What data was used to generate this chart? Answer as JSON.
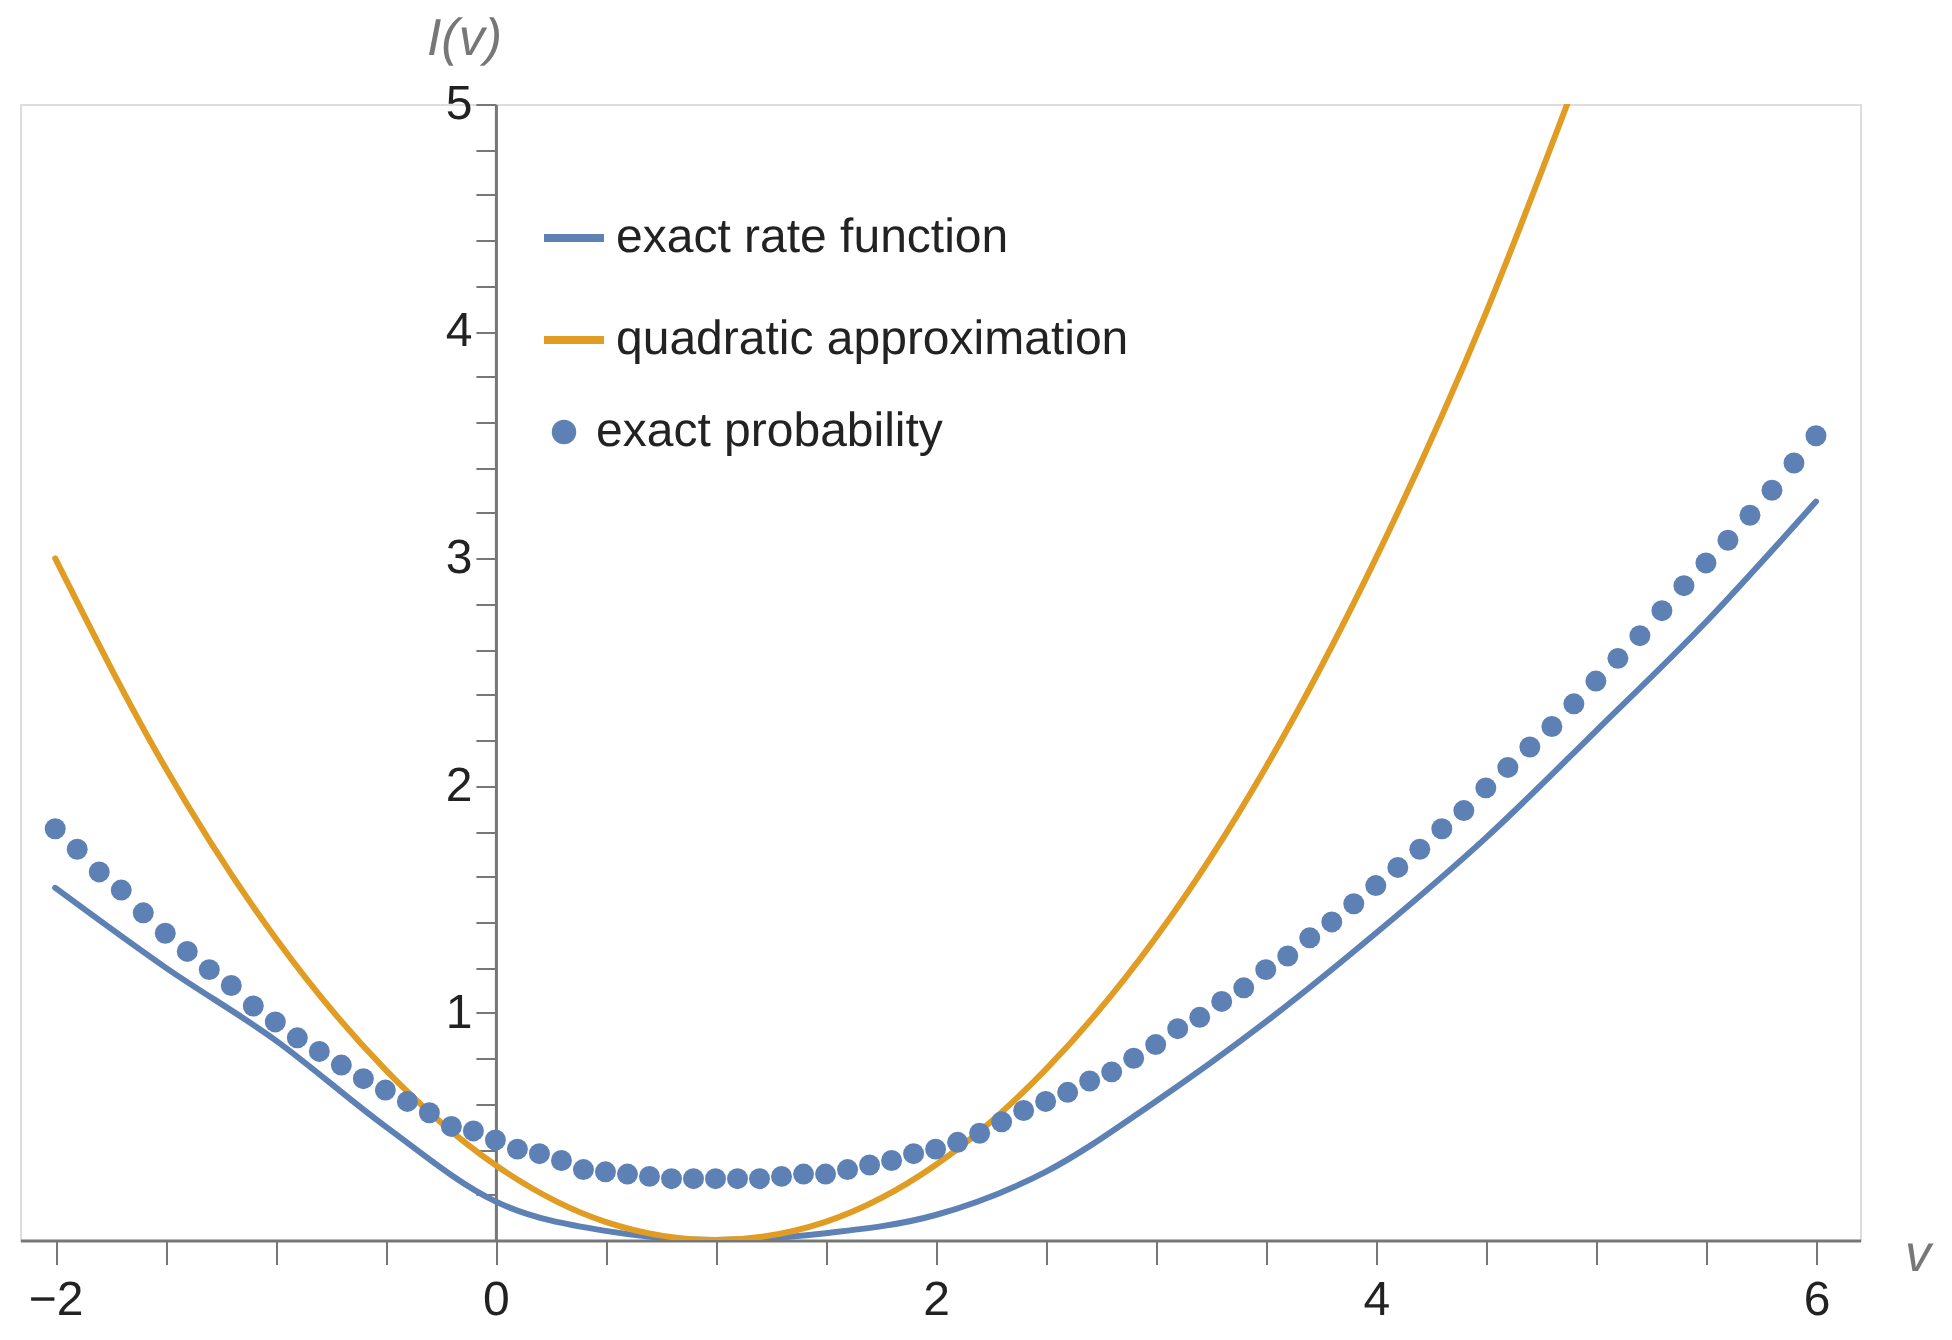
{
  "chart_data": {
    "type": "line",
    "xlabel": "v",
    "ylabel": "I(v)",
    "xlim": [
      -2.16,
      6.2
    ],
    "ylim": [
      0,
      5
    ],
    "xticks": [
      {
        "value": -2,
        "label": "−2"
      },
      {
        "value": -1.5,
        "label": null
      },
      {
        "value": -1,
        "label": null
      },
      {
        "value": -0.5,
        "label": null
      },
      0,
      {
        "value": 0.5,
        "label": null
      },
      {
        "value": 1,
        "label": null
      },
      {
        "value": 1.5,
        "label": null
      },
      2,
      {
        "value": 2.5,
        "label": null
      },
      {
        "value": 3,
        "label": null
      },
      {
        "value": 3.5,
        "label": null
      },
      4,
      {
        "value": 4.5,
        "label": null
      },
      {
        "value": 5,
        "label": null
      },
      {
        "value": 5.5,
        "label": null
      },
      6
    ],
    "yticks": [
      {
        "value": 0.2,
        "label": null
      },
      {
        "value": 0.4,
        "label": null
      },
      {
        "value": 0.6,
        "label": null
      },
      {
        "value": 0.8,
        "label": null
      },
      1,
      {
        "value": 1.2,
        "label": null
      },
      {
        "value": 1.4,
        "label": null
      },
      {
        "value": 1.6,
        "label": null
      },
      {
        "value": 1.8,
        "label": null
      },
      2,
      {
        "value": 2.2,
        "label": null
      },
      {
        "value": 2.4,
        "label": null
      },
      {
        "value": 2.6,
        "label": null
      },
      {
        "value": 2.8,
        "label": null
      },
      3,
      {
        "value": 3.2,
        "label": null
      },
      {
        "value": 3.4,
        "label": null
      },
      {
        "value": 3.6,
        "label": null
      },
      {
        "value": 3.8,
        "label": null
      },
      4,
      {
        "value": 4.2,
        "label": null
      },
      {
        "value": 4.4,
        "label": null
      },
      {
        "value": 4.6,
        "label": null
      },
      {
        "value": 4.8,
        "label": null
      },
      5
    ],
    "grid": false,
    "legend": "top left",
    "series": [
      {
        "name": "exact rate function",
        "color": "#5e81b5",
        "x": [
          -2,
          -1.5,
          -1,
          -0.5,
          0,
          0.5,
          1,
          1.5,
          2,
          2.5,
          3,
          3.5,
          4,
          4.5,
          5,
          5.5,
          6
        ],
        "values": [
          1.55,
          1.2,
          0.88,
          0.5,
          0.17,
          0.04,
          0,
          0.03,
          0.11,
          0.3,
          0.61,
          0.96,
          1.35,
          1.77,
          2.24,
          2.72,
          3.25
        ]
      },
      {
        "name": "quadratic approximation",
        "color": "#e19c24",
        "x": [
          -2,
          -1.5,
          -1,
          -0.5,
          0,
          0.5,
          1,
          1.5,
          2,
          2.5,
          3,
          3.5,
          4,
          4.5,
          4.87
        ],
        "values": [
          3.0,
          2.08,
          1.33,
          0.75,
          0.33,
          0.08,
          0,
          0.08,
          0.33,
          0.75,
          1.33,
          2.08,
          3.0,
          4.08,
          5.0
        ]
      },
      {
        "name": "exact probability",
        "type": "scatter",
        "marker": "circle",
        "color": "#5e81b5",
        "x": [
          -2,
          -1.9,
          -1.8,
          -1.7,
          -1.6,
          -1.5,
          -1.4,
          -1.3,
          -1.2,
          -1.1,
          -1,
          -0.9,
          -0.8,
          -0.7,
          -0.6,
          -0.5,
          -0.4,
          -0.3,
          -0.2,
          -0.1,
          0,
          0.1,
          0.2,
          0.3,
          0.4,
          0.5,
          0.6,
          0.7,
          0.8,
          0.9,
          1,
          1.1,
          1.2,
          1.3,
          1.4,
          1.5,
          1.6,
          1.7,
          1.8,
          1.9,
          2,
          2.1,
          2.2,
          2.3,
          2.4,
          2.5,
          2.6,
          2.7,
          2.8,
          2.9,
          3,
          3.1,
          3.2,
          3.3,
          3.4,
          3.5,
          3.6,
          3.7,
          3.8,
          3.9,
          4,
          4.1,
          4.2,
          4.3,
          4.4,
          4.5,
          4.6,
          4.7,
          4.8,
          4.9,
          5,
          5.1,
          5.2,
          5.3,
          5.4,
          5.5,
          5.6,
          5.7,
          5.8,
          5.9,
          6
        ],
        "values": [
          1.81,
          1.72,
          1.62,
          1.54,
          1.44,
          1.35,
          1.27,
          1.19,
          1.12,
          1.03,
          0.96,
          0.89,
          0.83,
          0.77,
          0.71,
          0.66,
          0.61,
          0.56,
          0.5,
          0.48,
          0.44,
          0.4,
          0.38,
          0.35,
          0.31,
          0.3,
          0.29,
          0.28,
          0.27,
          0.27,
          0.27,
          0.27,
          0.27,
          0.28,
          0.29,
          0.29,
          0.31,
          0.33,
          0.35,
          0.38,
          0.4,
          0.43,
          0.47,
          0.52,
          0.57,
          0.61,
          0.65,
          0.7,
          0.74,
          0.8,
          0.86,
          0.93,
          0.98,
          1.05,
          1.11,
          1.19,
          1.25,
          1.33,
          1.4,
          1.48,
          1.56,
          1.64,
          1.72,
          1.81,
          1.89,
          1.99,
          2.08,
          2.17,
          2.26,
          2.36,
          2.46,
          2.56,
          2.66,
          2.77,
          2.88,
          2.98,
          3.08,
          3.19,
          3.3,
          3.42,
          3.54
        ]
      }
    ]
  }
}
